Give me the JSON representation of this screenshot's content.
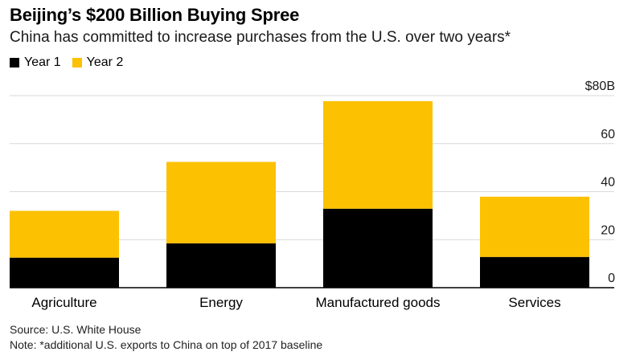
{
  "chart_data": {
    "type": "bar",
    "stacked": true,
    "title": "Beijing’s $200 Billion Buying Spree",
    "subtitle": "China has committed to increase purchases from the U.S. over two years*",
    "categories": [
      "Agriculture",
      "Energy",
      "Manufactured goods",
      "Services"
    ],
    "series": [
      {
        "name": "Year 1",
        "color": "#000000",
        "values": [
          12.5,
          18.5,
          32.9,
          12.8
        ]
      },
      {
        "name": "Year 2",
        "color": "#fcc100",
        "values": [
          19.5,
          33.9,
          44.8,
          25.1
        ]
      }
    ],
    "ylim": [
      0,
      80
    ],
    "yticks": [
      0,
      20,
      40,
      60,
      80
    ],
    "ytick_labels": [
      "0",
      "20",
      "40",
      "60",
      "$80B"
    ],
    "grid": true,
    "legend_position": "top-left"
  },
  "footer": {
    "source": "Source: U.S. White House",
    "note": "Note: *additional U.S. exports to China on top of 2017 baseline"
  }
}
